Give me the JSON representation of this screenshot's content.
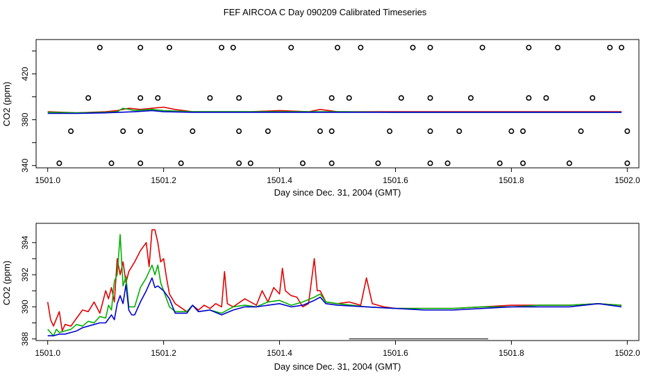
{
  "page_title": "FEF AIRCOA C  Day 090209  Calibrated Timeseries",
  "series_colors": [
    "#e00000",
    "#00b000",
    "#0000d0"
  ],
  "chart_data": [
    {
      "type": "scatter",
      "title": "",
      "xlabel": "Day since Dec. 31, 2004 (GMT)",
      "ylabel": "CO2 (ppm)",
      "xlim": [
        1500.98,
        1502.02
      ],
      "ylim": [
        338,
        450
      ],
      "x_ticks": [
        1501.0,
        1501.2,
        1501.4,
        1501.6,
        1501.8,
        1502.0
      ],
      "x_tick_labels": [
        "1501.0",
        "1501.2",
        "1501.4",
        "1501.6",
        "1501.8",
        "1502.0"
      ],
      "y_ticks": [
        340,
        360,
        380,
        400,
        420,
        440
      ],
      "y_tick_labels": [
        "340",
        "",
        "380",
        "",
        "420",
        ""
      ],
      "series": [
        {
          "name": "red",
          "color": "#e00000",
          "x": [
            1501.0,
            1501.05,
            1501.1,
            1501.12,
            1501.14,
            1501.16,
            1501.18,
            1501.2,
            1501.22,
            1501.25,
            1501.3,
            1501.35,
            1501.4,
            1501.45,
            1501.47,
            1501.5,
            1501.55,
            1501.6,
            1501.65,
            1501.7,
            1501.75,
            1501.8,
            1501.85,
            1501.9,
            1501.95,
            1501.99
          ],
          "y": [
            387,
            386,
            387,
            388,
            390,
            389,
            390,
            391,
            389,
            387,
            387,
            387,
            388,
            387,
            389,
            387,
            387,
            387,
            387,
            387,
            387,
            387,
            387,
            387,
            387,
            387
          ]
        },
        {
          "name": "green",
          "color": "#00b000",
          "x": [
            1501.0,
            1501.05,
            1501.1,
            1501.12,
            1501.13,
            1501.15,
            1501.18,
            1501.2,
            1501.25,
            1501.3,
            1501.4,
            1501.5,
            1501.6,
            1501.7,
            1501.8,
            1501.9,
            1501.99
          ],
          "y": [
            386.5,
            386,
            386.5,
            387,
            390,
            388,
            389,
            388,
            387,
            387,
            387,
            387,
            386.5,
            386.5,
            386.5,
            386.5,
            386.5
          ]
        },
        {
          "name": "blue",
          "color": "#0000d0",
          "x": [
            1501.0,
            1501.05,
            1501.1,
            1501.15,
            1501.18,
            1501.2,
            1501.25,
            1501.3,
            1501.4,
            1501.5,
            1501.6,
            1501.7,
            1501.8,
            1501.9,
            1501.99
          ],
          "y": [
            385.5,
            385.5,
            386,
            387,
            388,
            387,
            386.5,
            386.5,
            386.5,
            386.5,
            386.5,
            386.5,
            386.5,
            386.5,
            386.5
          ]
        },
        {
          "name": "markers",
          "color": "#000000",
          "marker": "circle",
          "x": [
            1501.09,
            1501.16,
            1501.21,
            1501.3,
            1501.32,
            1501.42,
            1501.5,
            1501.54,
            1501.63,
            1501.66,
            1501.75,
            1501.83,
            1501.88,
            1501.97,
            1501.99,
            1501.07,
            1501.16,
            1501.19,
            1501.28,
            1501.33,
            1501.4,
            1501.49,
            1501.52,
            1501.61,
            1501.66,
            1501.73,
            1501.83,
            1501.86,
            1501.94,
            1501.04,
            1501.13,
            1501.16,
            1501.25,
            1501.33,
            1501.38,
            1501.47,
            1501.49,
            1501.59,
            1501.66,
            1501.71,
            1501.8,
            1501.82,
            1501.92,
            1502.0,
            1501.02,
            1501.11,
            1501.16,
            1501.23,
            1501.33,
            1501.35,
            1501.44,
            1501.49,
            1501.57,
            1501.66,
            1501.69,
            1501.78,
            1501.82,
            1501.9,
            1502.0
          ],
          "y": [
            443,
            443,
            443,
            443,
            443,
            443,
            443,
            443,
            443,
            443,
            443,
            443,
            443,
            443,
            443,
            399,
            399,
            399,
            399,
            399,
            399,
            399,
            399,
            399,
            399,
            399,
            399,
            399,
            399,
            370,
            370,
            370,
            370,
            370,
            370,
            370,
            370,
            370,
            370,
            370,
            370,
            370,
            370,
            370,
            342,
            342,
            342,
            342,
            342,
            342,
            342,
            342,
            342,
            342,
            342,
            342,
            342,
            342,
            342
          ]
        }
      ]
    },
    {
      "type": "line",
      "title": "",
      "xlabel": "Day since Dec. 31, 2004 (GMT)",
      "ylabel": "CO2 (ppm)",
      "xlim": [
        1500.98,
        1502.02
      ],
      "ylim": [
        387.9,
        395.2
      ],
      "x_ticks": [
        1501.0,
        1501.2,
        1501.4,
        1501.6,
        1501.8,
        1502.0
      ],
      "x_tick_labels": [
        "1501.0",
        "1501.2",
        "1501.4",
        "1501.6",
        "1501.8",
        "1502.0"
      ],
      "y_ticks": [
        388,
        389,
        390,
        391,
        392,
        393,
        394
      ],
      "y_tick_labels": [
        "388",
        "",
        "390",
        "",
        "392",
        "",
        "394"
      ],
      "segment": {
        "x": [
          1501.52,
          1501.76
        ],
        "y": 388.0
      },
      "series": [
        {
          "name": "red",
          "color": "#e00000",
          "x": [
            1501.0,
            1501.005,
            1501.01,
            1501.02,
            1501.025,
            1501.03,
            1501.04,
            1501.05,
            1501.06,
            1501.07,
            1501.08,
            1501.09,
            1501.1,
            1501.105,
            1501.11,
            1501.115,
            1501.12,
            1501.125,
            1501.13,
            1501.135,
            1501.14,
            1501.15,
            1501.16,
            1501.17,
            1501.175,
            1501.18,
            1501.185,
            1501.19,
            1501.195,
            1501.2,
            1501.205,
            1501.21,
            1501.22,
            1501.24,
            1501.25,
            1501.26,
            1501.27,
            1501.28,
            1501.29,
            1501.3,
            1501.305,
            1501.31,
            1501.32,
            1501.34,
            1501.36,
            1501.37,
            1501.38,
            1501.39,
            1501.4,
            1501.405,
            1501.41,
            1501.42,
            1501.43,
            1501.44,
            1501.45,
            1501.46,
            1501.465,
            1501.47,
            1501.48,
            1501.5,
            1501.52,
            1501.54,
            1501.55,
            1501.56,
            1501.58,
            1501.6,
            1501.65,
            1501.7,
            1501.75,
            1501.8,
            1501.85,
            1501.9,
            1501.95,
            1501.99
          ],
          "y": [
            390.3,
            389.2,
            388.8,
            389.7,
            388.5,
            388.9,
            388.8,
            389.3,
            389.8,
            389.7,
            390.3,
            389.6,
            391.0,
            390.5,
            391.2,
            390.3,
            393.0,
            392.0,
            392.8,
            391.5,
            392.2,
            392.8,
            393.5,
            394.0,
            392.5,
            394.8,
            394.8,
            394.0,
            392.8,
            393.0,
            391.8,
            390.8,
            390.2,
            389.7,
            390.1,
            389.8,
            390.1,
            389.9,
            390.2,
            390.0,
            392.2,
            390.2,
            390.0,
            390.5,
            390.1,
            391.0,
            390.3,
            391.2,
            390.8,
            392.4,
            391.0,
            390.7,
            390.6,
            390.0,
            390.2,
            393.0,
            391.0,
            391.0,
            390.3,
            390.2,
            390.3,
            390.1,
            391.8,
            390.2,
            390.0,
            389.9,
            389.9,
            389.9,
            390.0,
            390.1,
            390.1,
            390.1,
            390.2,
            390.1
          ]
        },
        {
          "name": "green",
          "color": "#00b000",
          "x": [
            1501.0,
            1501.01,
            1501.015,
            1501.02,
            1501.03,
            1501.04,
            1501.05,
            1501.06,
            1501.07,
            1501.08,
            1501.09,
            1501.1,
            1501.105,
            1501.11,
            1501.115,
            1501.12,
            1501.125,
            1501.13,
            1501.135,
            1501.14,
            1501.15,
            1501.16,
            1501.17,
            1501.18,
            1501.185,
            1501.19,
            1501.195,
            1501.2,
            1501.21,
            1501.22,
            1501.24,
            1501.25,
            1501.26,
            1501.28,
            1501.3,
            1501.32,
            1501.34,
            1501.36,
            1501.38,
            1501.4,
            1501.42,
            1501.44,
            1501.46,
            1501.47,
            1501.48,
            1501.5,
            1501.55,
            1501.6,
            1501.65,
            1501.7,
            1501.75,
            1501.8,
            1501.85,
            1501.9,
            1501.95,
            1501.99
          ],
          "y": [
            388.6,
            388.2,
            388.6,
            388.4,
            388.5,
            388.6,
            388.9,
            388.8,
            389.1,
            389.0,
            389.4,
            389.3,
            390.1,
            389.8,
            391.6,
            392.0,
            394.5,
            391.3,
            391.9,
            390.0,
            390.0,
            391.2,
            391.8,
            392.6,
            392.0,
            392.6,
            391.5,
            391.0,
            390.0,
            389.7,
            389.7,
            390.1,
            389.7,
            389.8,
            389.6,
            390.0,
            390.1,
            390.0,
            390.3,
            390.4,
            390.1,
            390.3,
            390.6,
            390.8,
            390.3,
            390.2,
            390.0,
            389.9,
            389.9,
            389.9,
            390.0,
            390.0,
            390.1,
            390.1,
            390.2,
            390.1
          ]
        },
        {
          "name": "blue",
          "color": "#0000d0",
          "x": [
            1501.0,
            1501.01,
            1501.02,
            1501.03,
            1501.04,
            1501.05,
            1501.06,
            1501.07,
            1501.08,
            1501.09,
            1501.1,
            1501.11,
            1501.115,
            1501.12,
            1501.125,
            1501.13,
            1501.135,
            1501.14,
            1501.145,
            1501.15,
            1501.16,
            1501.17,
            1501.18,
            1501.185,
            1501.19,
            1501.2,
            1501.21,
            1501.22,
            1501.24,
            1501.25,
            1501.26,
            1501.28,
            1501.3,
            1501.32,
            1501.34,
            1501.36,
            1501.38,
            1501.4,
            1501.42,
            1501.44,
            1501.46,
            1501.47,
            1501.48,
            1501.5,
            1501.55,
            1501.6,
            1501.65,
            1501.7,
            1501.75,
            1501.8,
            1501.85,
            1501.9,
            1501.95,
            1501.99
          ],
          "y": [
            388.2,
            388.2,
            388.3,
            388.3,
            388.4,
            388.5,
            388.7,
            388.8,
            388.9,
            389.0,
            389.0,
            389.5,
            389.2,
            390.2,
            390.7,
            390.2,
            391.4,
            389.8,
            389.5,
            389.5,
            390.3,
            391.0,
            391.8,
            391.2,
            391.3,
            391.0,
            390.5,
            389.6,
            389.6,
            390.1,
            389.7,
            389.8,
            389.5,
            389.8,
            390.0,
            390.0,
            390.1,
            390.2,
            390.0,
            390.1,
            390.4,
            390.6,
            390.2,
            390.1,
            390.0,
            389.9,
            389.8,
            389.8,
            389.9,
            390.0,
            390.0,
            390.0,
            390.2,
            390.0
          ]
        }
      ]
    }
  ]
}
